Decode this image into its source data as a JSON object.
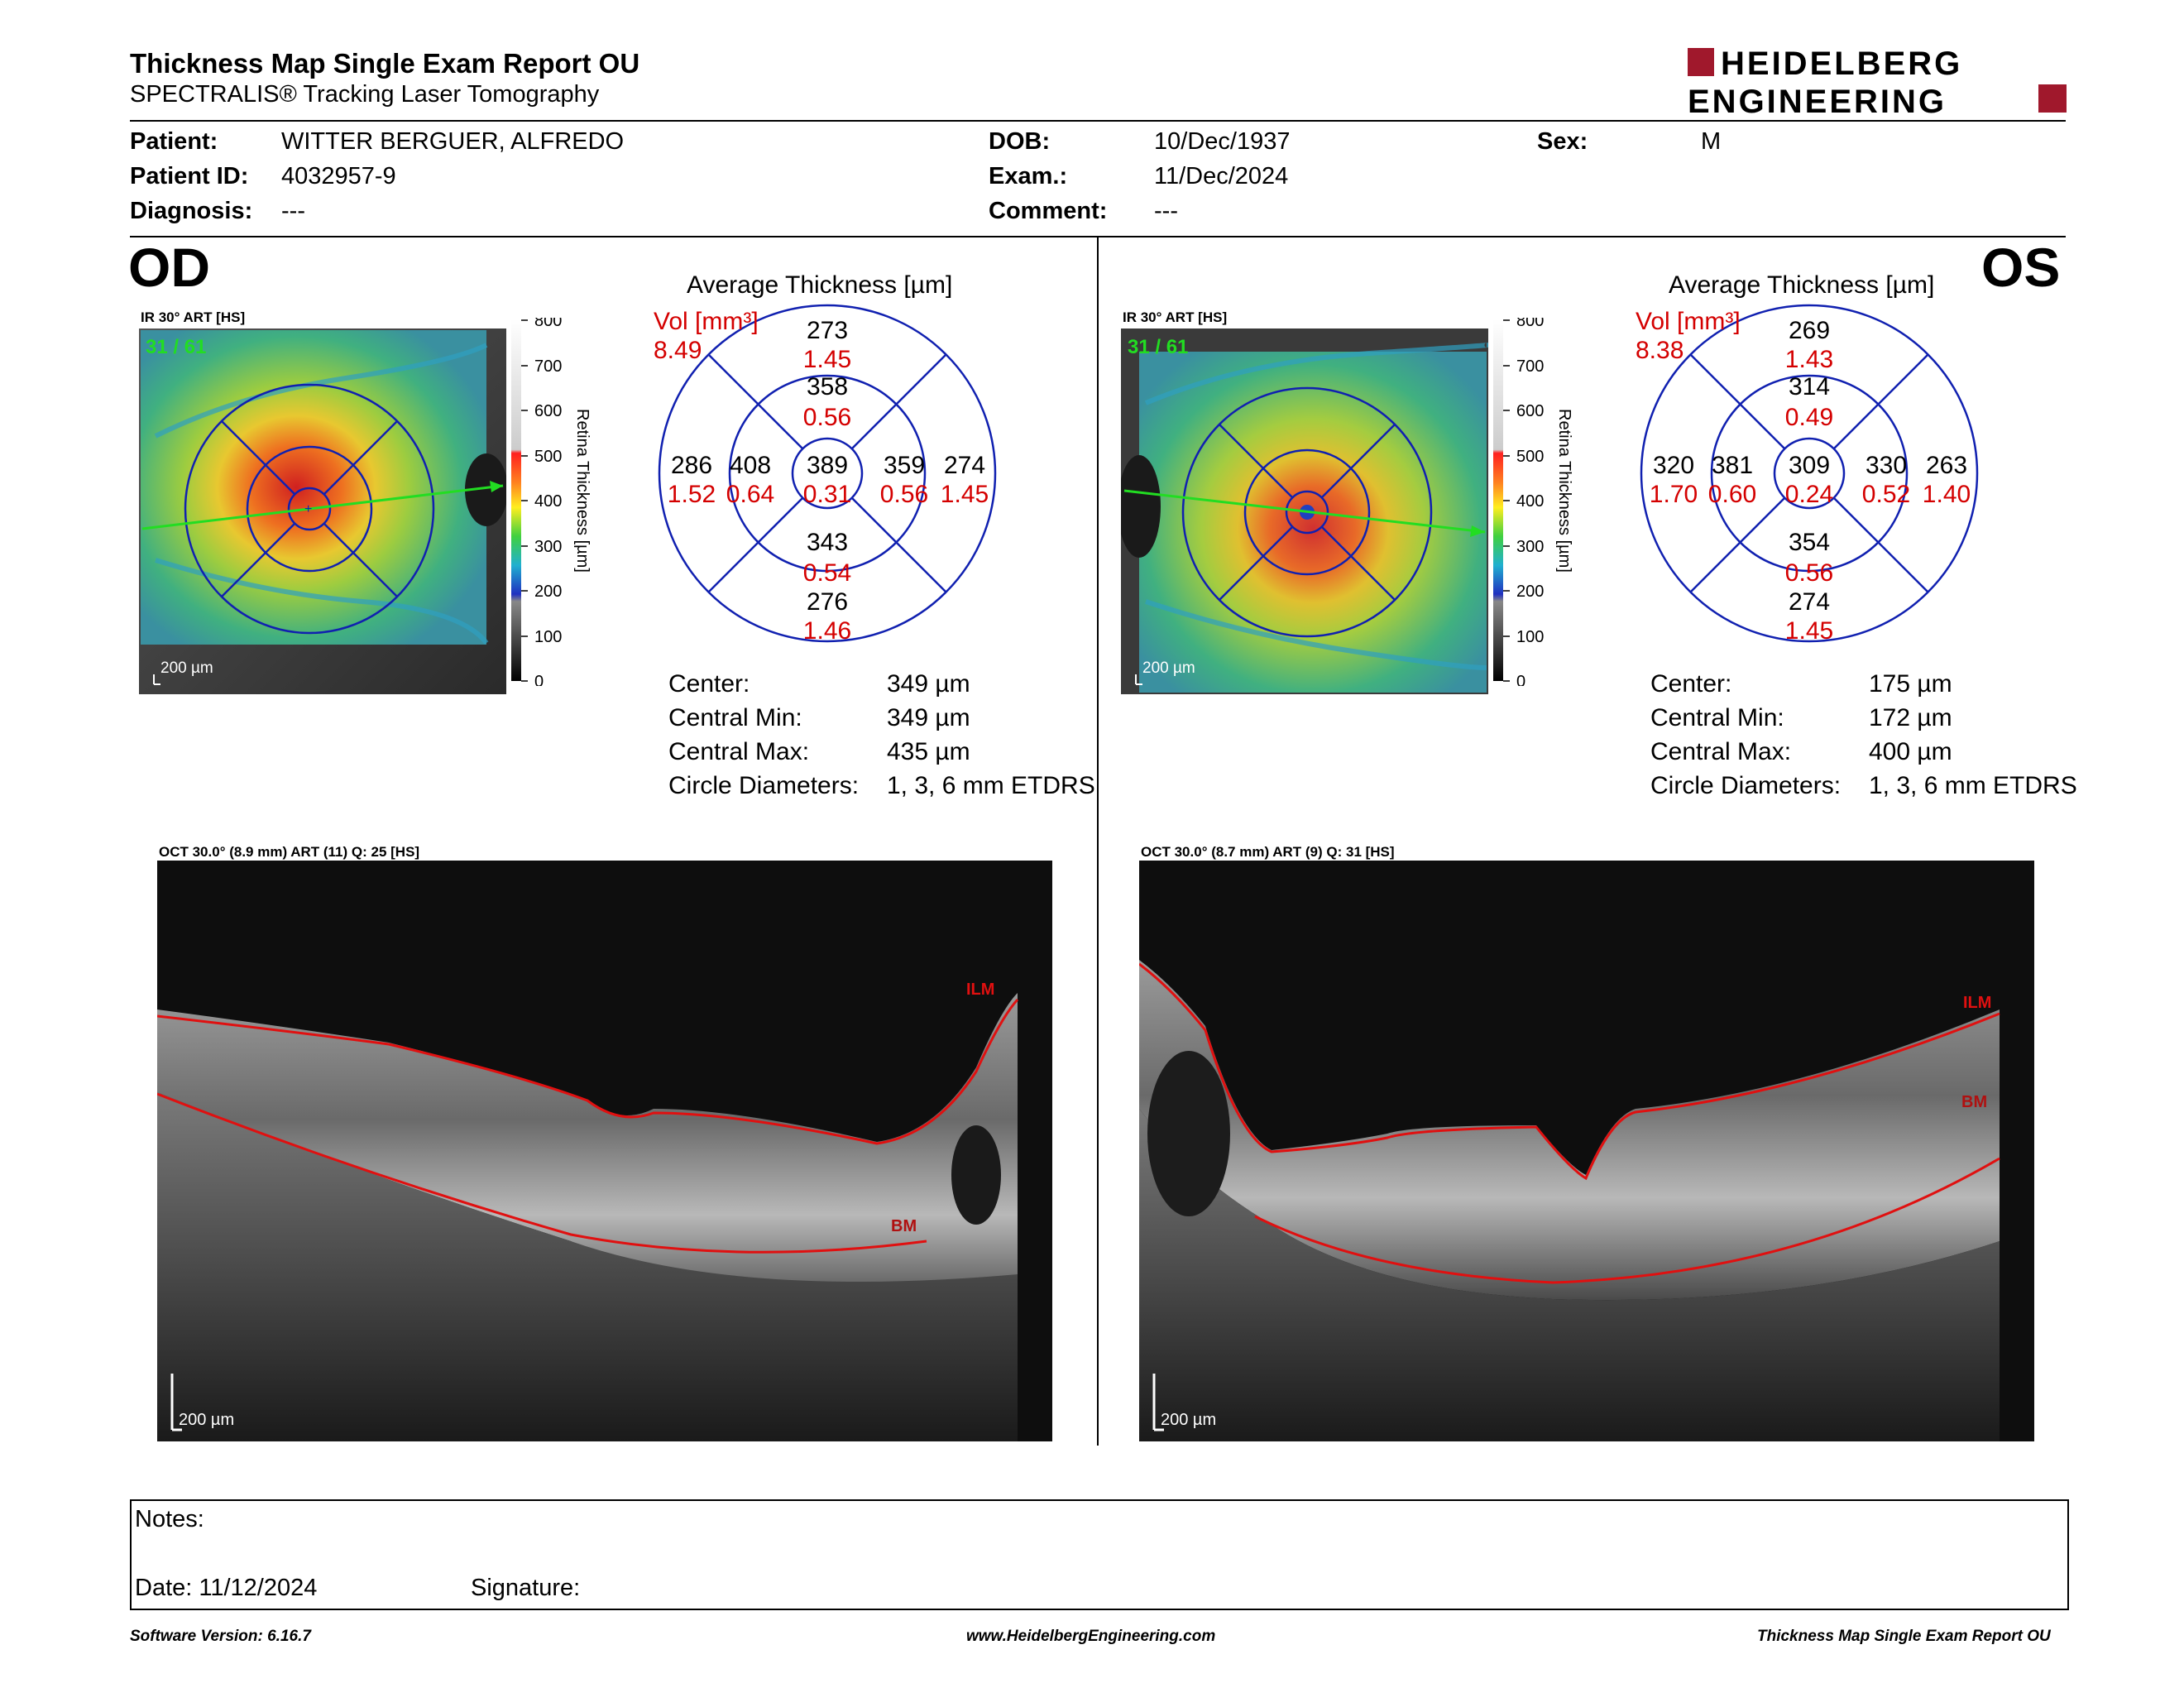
{
  "header": {
    "title": "Thickness Map Single Exam Report OU",
    "subtitle": "SPECTRALIS® Tracking Laser Tomography",
    "logo_line1": "HEIDELBERG",
    "logo_line2": "ENGINEERING"
  },
  "patient": {
    "patient_label": "Patient:",
    "patient_value": "WITTER BERGUER, ALFREDO",
    "id_label": "Patient ID:",
    "id_value": "4032957-9",
    "diagnosis_label": "Diagnosis:",
    "diagnosis_value": "---",
    "dob_label": "DOB:",
    "dob_value": "10/Dec/1937",
    "exam_label": "Exam.:",
    "exam_value": "11/Dec/2024",
    "comment_label": "Comment:",
    "comment_value": "---",
    "sex_label": "Sex:",
    "sex_value": "M"
  },
  "od": {
    "eye_label": "OD",
    "ir_label": "IR 30° ART [HS]",
    "frame": "31 / 61",
    "scale": "200 µm",
    "avg_title": "Average Thickness [µm]",
    "vol_label": "Vol [mm³]",
    "vol_value": "8.49",
    "sectors": {
      "center": [
        "389",
        "0.31"
      ],
      "inner_sup": [
        "358",
        "0.56"
      ],
      "inner_inf": [
        "343",
        "0.54"
      ],
      "inner_temp": [
        "408",
        "0.64"
      ],
      "inner_nas": [
        "359",
        "0.56"
      ],
      "outer_sup": [
        "273",
        "1.45"
      ],
      "outer_inf": [
        "276",
        "1.46"
      ],
      "outer_temp": [
        "286",
        "1.52"
      ],
      "outer_nas": [
        "274",
        "1.45"
      ]
    },
    "stats": [
      {
        "label": "Center:",
        "value": "349 µm"
      },
      {
        "label": "Central Min:",
        "value": "349 µm"
      },
      {
        "label": "Central Max:",
        "value": "435 µm"
      },
      {
        "label": "Circle Diameters:",
        "value": "1, 3, 6 mm ETDRS"
      }
    ],
    "oct_label": "OCT 30.0° (8.9 mm) ART (11) Q: 25 [HS]",
    "ilm": "ILM",
    "bm": "BM",
    "oct_scale": "200 µm"
  },
  "os": {
    "eye_label": "OS",
    "ir_label": "IR 30° ART [HS]",
    "frame": "31 / 61",
    "scale": "200 µm",
    "avg_title": "Average Thickness [µm]",
    "vol_label": "Vol [mm³]",
    "vol_value": "8.38",
    "sectors": {
      "center": [
        "309",
        "0.24"
      ],
      "inner_sup": [
        "314",
        "0.49"
      ],
      "inner_inf": [
        "354",
        "0.56"
      ],
      "inner_temp": [
        "381",
        "0.60"
      ],
      "inner_nas": [
        "330",
        "0.52"
      ],
      "outer_sup": [
        "269",
        "1.43"
      ],
      "outer_inf": [
        "274",
        "1.45"
      ],
      "outer_temp": [
        "320",
        "1.70"
      ],
      "outer_nas": [
        "263",
        "1.40"
      ]
    },
    "stats": [
      {
        "label": "Center:",
        "value": "175 µm"
      },
      {
        "label": "Central Min:",
        "value": "172 µm"
      },
      {
        "label": "Central Max:",
        "value": "400 µm"
      },
      {
        "label": "Circle Diameters:",
        "value": "1, 3, 6 mm ETDRS"
      }
    ],
    "oct_label": "OCT 30.0° (8.7 mm) ART (9) Q: 31 [HS]",
    "ilm": "ILM",
    "bm": "BM",
    "oct_scale": "200 µm"
  },
  "colorbar": {
    "ticks": [
      "800",
      "700",
      "600",
      "500",
      "400",
      "300",
      "200",
      "100",
      "0"
    ],
    "label": "Retina Thickness [µm]"
  },
  "notes": {
    "notes_label": "Notes:",
    "date_label": "Date: 11/12/2024",
    "signature_label": "Signature:"
  },
  "footer": {
    "software": "Software Version: 6.16.7",
    "website": "www.HeidelbergEngineering.com",
    "report": "Thickness Map Single Exam Report OU"
  },
  "colors": {
    "logo_red": "#a0182c",
    "grid_blue": "#1020b0",
    "value_red": "#d40000",
    "scan_green": "#22dd22"
  }
}
